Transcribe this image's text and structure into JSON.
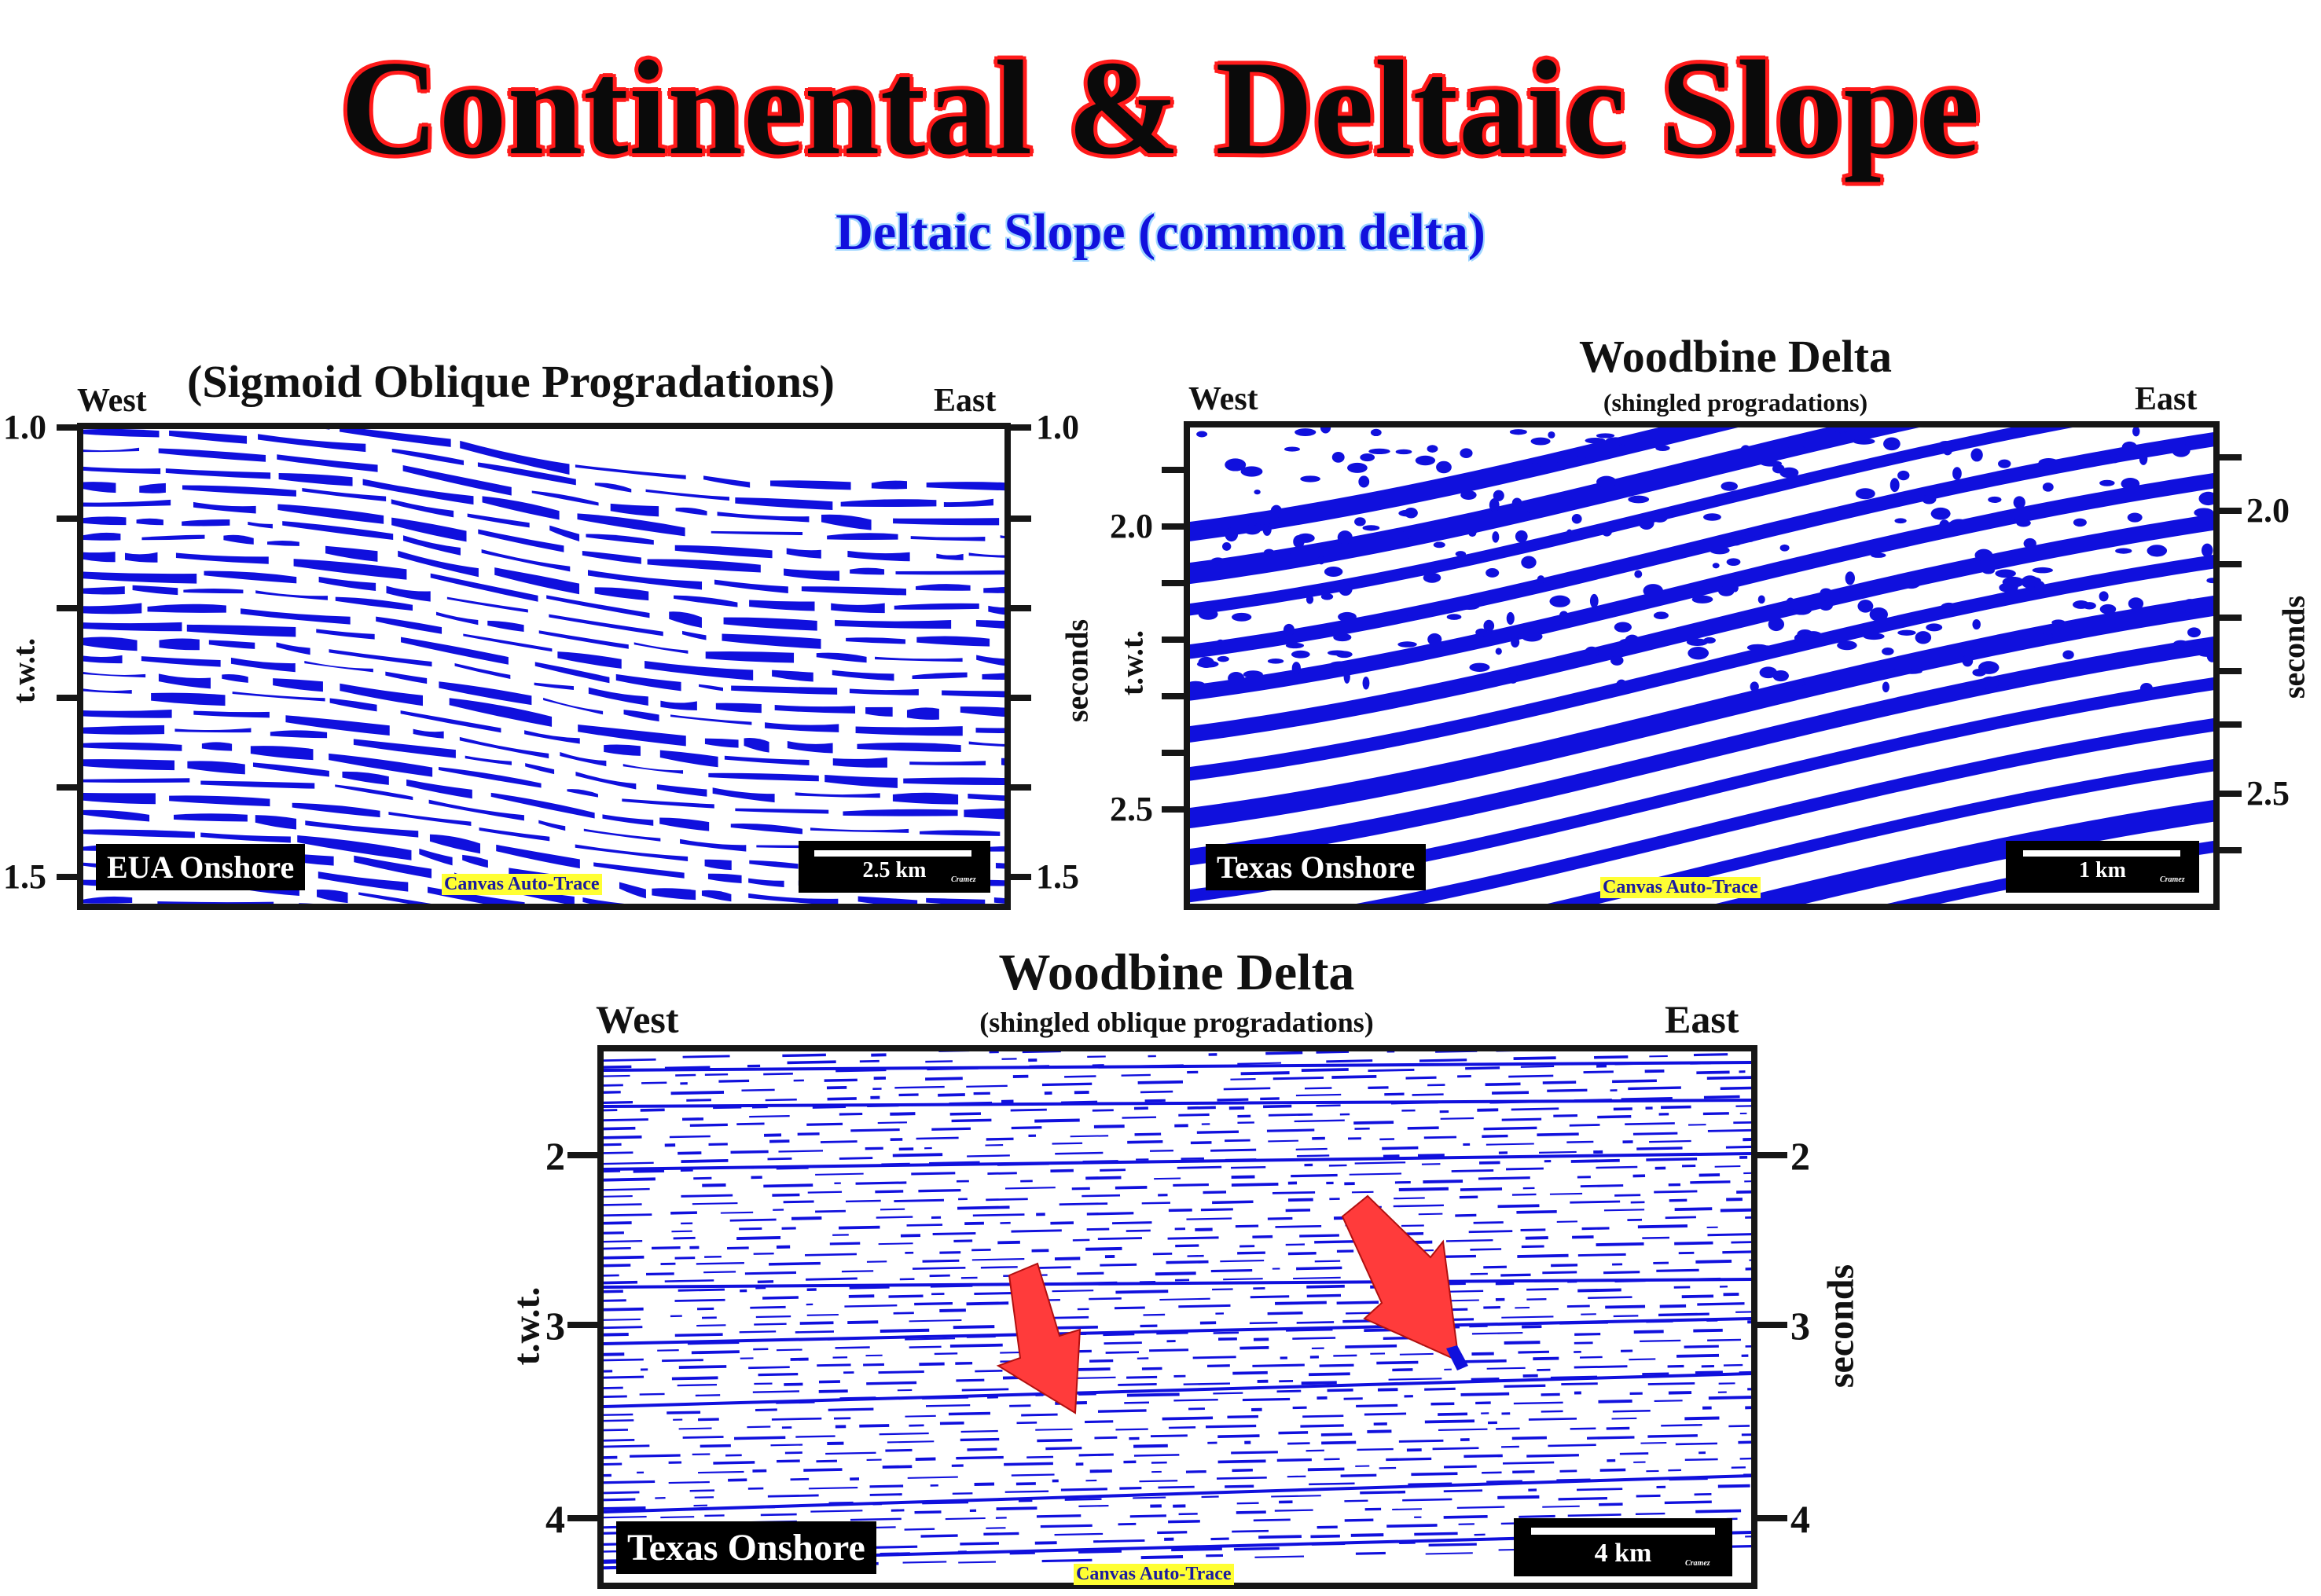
{
  "title": "Continental & Deltaic Slope",
  "subtitle": "Deltaic Slope (common delta)",
  "panels": [
    {
      "title": "(Sigmoid Oblique Progradations)",
      "subtitle": "",
      "west": "West",
      "east": "East",
      "left_ticks": [
        "1.0",
        "1.5"
      ],
      "right_ticks": [
        "1.0",
        "1.5"
      ],
      "left_axis": "t.w.t.",
      "right_axis": "seconds",
      "location": "EUA Onshore",
      "scale": "2.5 km",
      "credit": "Canvas Auto-Trace",
      "author": "Cramez"
    },
    {
      "title": "Woodbine Delta",
      "subtitle": "(shingled progradations)",
      "west": "West",
      "east": "East",
      "left_ticks": [
        "2.0",
        "2.5"
      ],
      "right_ticks": [
        "2.0",
        "2.5"
      ],
      "left_axis": "t.w.t.",
      "right_axis": "seconds",
      "location": "Texas Onshore",
      "scale": "1 km",
      "credit": "Canvas Auto-Trace",
      "author": "Cramez"
    },
    {
      "title": "Woodbine Delta",
      "subtitle": "(shingled oblique progradations)",
      "west": "West",
      "east": "East",
      "left_ticks": [
        "2",
        "3",
        "4"
      ],
      "right_ticks": [
        "2",
        "3",
        "4"
      ],
      "left_axis": "t.w.t.",
      "right_axis": "seconds",
      "location": "Texas Onshore",
      "scale": "4 km",
      "credit": "Canvas Auto-Trace",
      "author": "Cramez"
    }
  ],
  "colors": {
    "reflector": "#1010dd",
    "arrow": "#ff3b3b",
    "frame": "#161616",
    "title_outline": "#ff1a1a"
  }
}
